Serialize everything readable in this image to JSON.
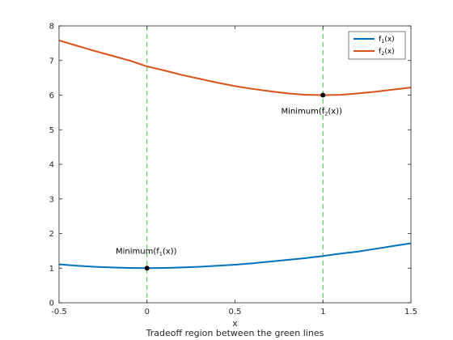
{
  "chart_data": {
    "type": "line",
    "title": "",
    "xlabel": "x",
    "xlabel_secondary": "Tradeoff region between the green lines",
    "ylabel": "",
    "xlim": [
      -0.5,
      1.5
    ],
    "ylim": [
      0,
      8
    ],
    "xticks": [
      -0.5,
      0,
      0.5,
      1,
      1.5
    ],
    "xtick_labels": [
      "-0.5",
      "0",
      "0.5",
      "1",
      "1.5"
    ],
    "yticks": [
      0,
      1,
      2,
      3,
      4,
      5,
      6,
      7,
      8
    ],
    "ytick_labels": [
      "0",
      "1",
      "2",
      "3",
      "4",
      "5",
      "6",
      "7",
      "8"
    ],
    "grid": false,
    "legend_position": "top-right",
    "series": [
      {
        "name": "f1(x)",
        "legend_base": "f",
        "legend_sub": "1",
        "legend_rest": "(x)",
        "color": "#0072BD",
        "x": [
          -0.5,
          -0.4,
          -0.3,
          -0.2,
          -0.1,
          0,
          0.1,
          0.2,
          0.3,
          0.4,
          0.5,
          0.6,
          0.7,
          0.8,
          0.9,
          1.0,
          1.1,
          1.2,
          1.3,
          1.4,
          1.5
        ],
        "y": [
          1.11,
          1.07,
          1.04,
          1.02,
          1.005,
          1.0,
          1.005,
          1.02,
          1.04,
          1.07,
          1.1,
          1.14,
          1.19,
          1.24,
          1.29,
          1.35,
          1.42,
          1.48,
          1.56,
          1.64,
          1.72
        ]
      },
      {
        "name": "f2(x)",
        "legend_base": "f",
        "legend_sub": "2",
        "legend_rest": "(x)",
        "color": "#D95319",
        "x": [
          -0.5,
          -0.4,
          -0.3,
          -0.2,
          -0.1,
          0,
          0.1,
          0.2,
          0.3,
          0.4,
          0.5,
          0.6,
          0.7,
          0.8,
          0.9,
          1.0,
          1.1,
          1.2,
          1.3,
          1.4,
          1.5
        ],
        "y": [
          7.58,
          7.43,
          7.28,
          7.14,
          7.0,
          6.83,
          6.71,
          6.58,
          6.47,
          6.36,
          6.26,
          6.18,
          6.11,
          6.05,
          6.01,
          6.0,
          6.01,
          6.05,
          6.1,
          6.16,
          6.22
        ]
      }
    ],
    "vlines": {
      "x": [
        0,
        1
      ],
      "color": "#33cc33",
      "style": "dashed"
    },
    "points": [
      {
        "x": 0,
        "y": 1.0
      },
      {
        "x": 1,
        "y": 6.0
      }
    ],
    "annotations": [
      {
        "base": "Minimum(f",
        "sub": "1",
        "rest": "(x))",
        "x": 0,
        "y": 1.0
      },
      {
        "base": "Minimum(f",
        "sub": "2",
        "rest": "(x))",
        "x": 1,
        "y": 6.0
      }
    ]
  }
}
